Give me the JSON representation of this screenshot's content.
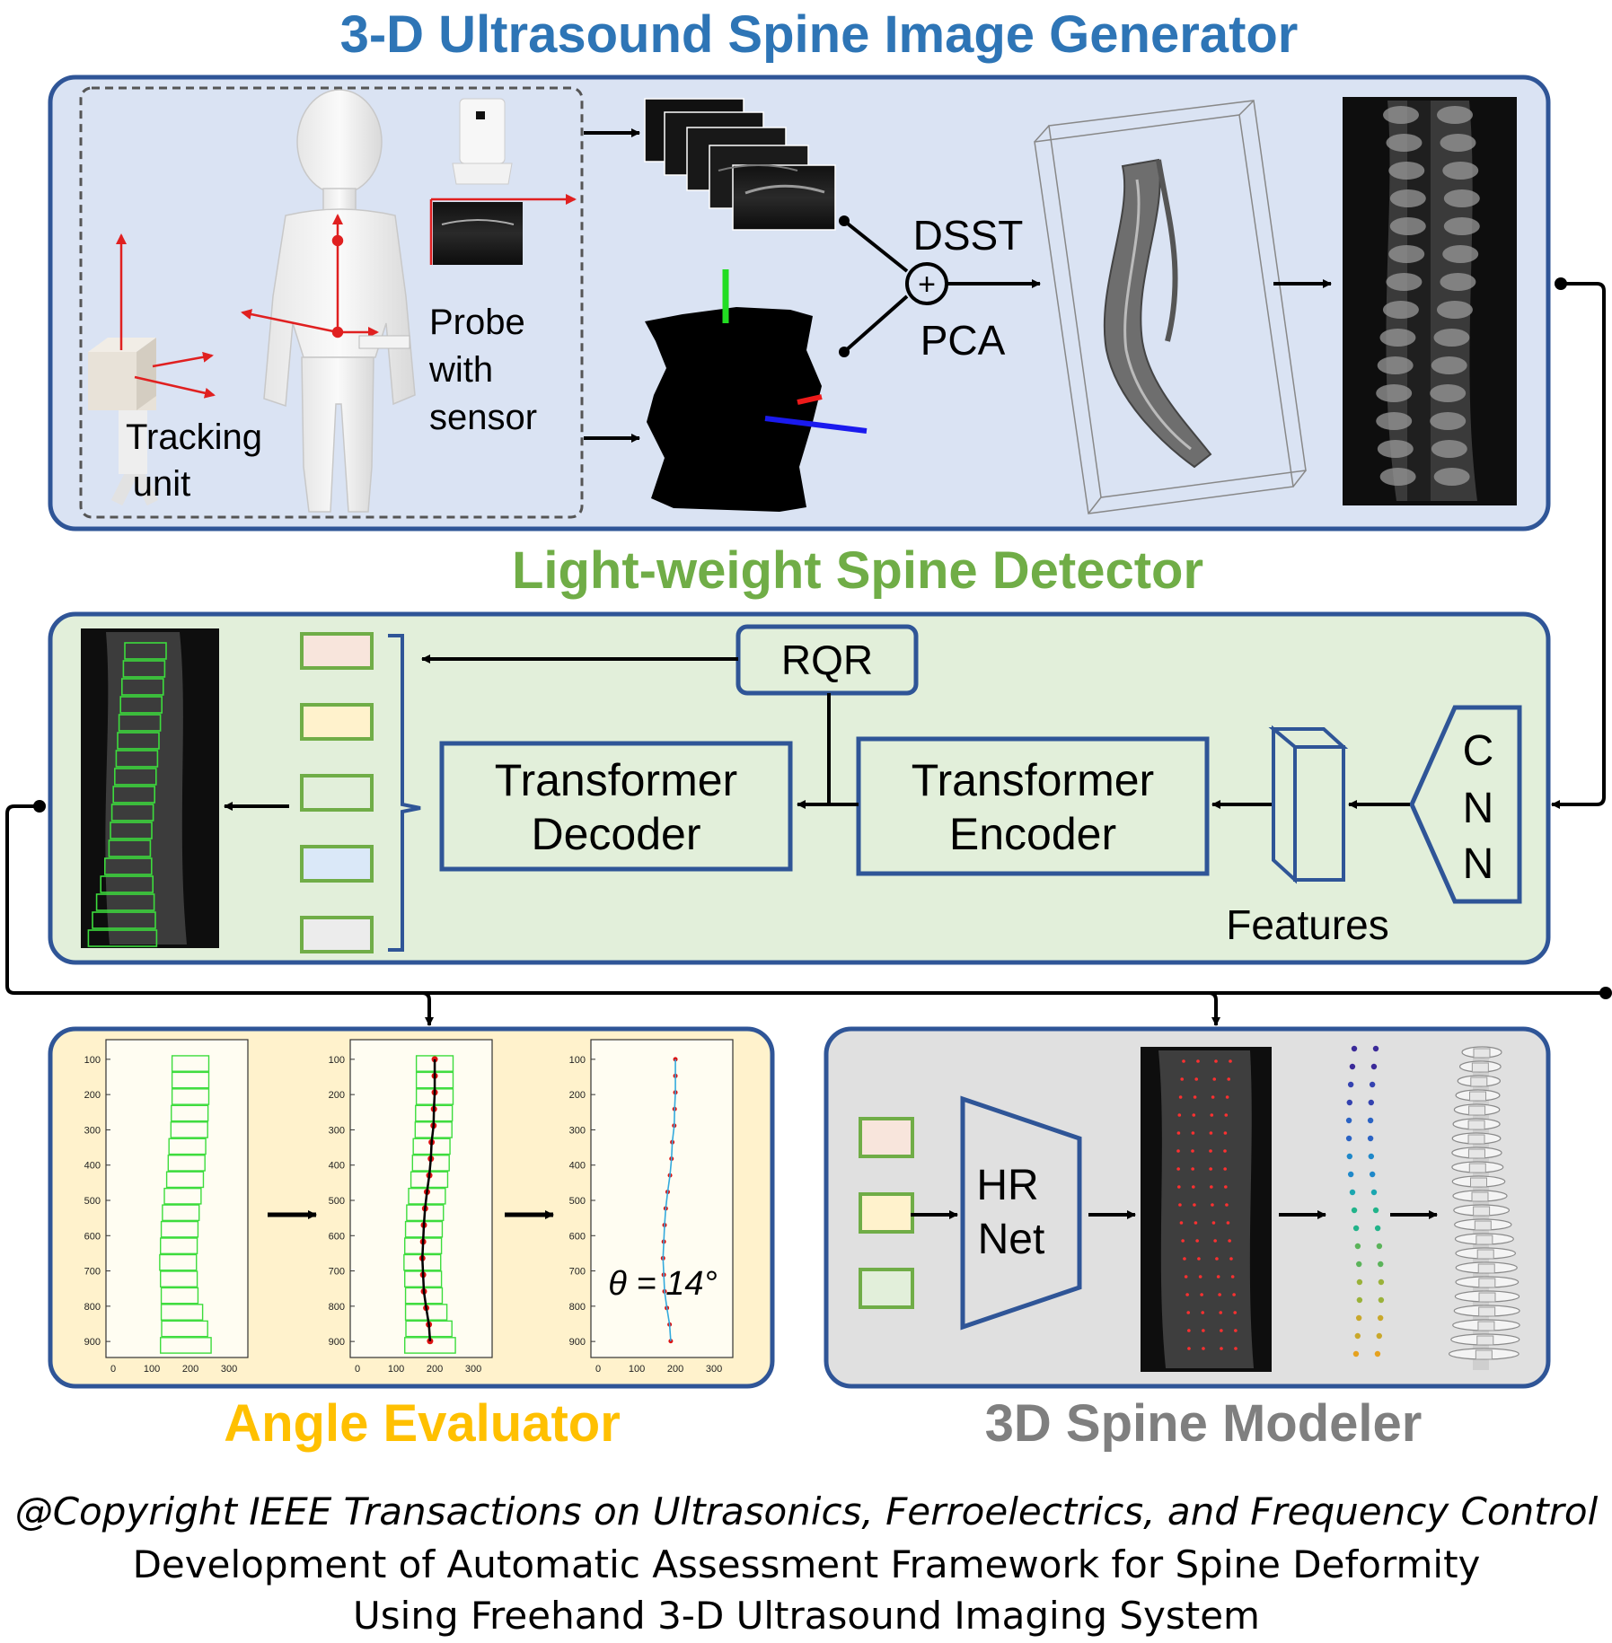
{
  "sections": {
    "generator": {
      "title": "3-D Ultrasound Spine Image Generator",
      "color": "#2e75b6",
      "panel_fill": "#dae3f3"
    },
    "detector": {
      "title": "Light-weight Spine Detector",
      "color": "#70ad47",
      "panel_fill": "#e2efda"
    },
    "evaluator": {
      "title": "Angle Evaluator",
      "color": "#ffc000",
      "panel_fill": "#fff2cc"
    },
    "modeler": {
      "title": "3D Spine Modeler",
      "color": "#7f7f7f",
      "panel_fill": "#e0e0e0"
    }
  },
  "generator": {
    "tracking_label": [
      "Tracking",
      "unit"
    ],
    "probe_label": [
      "Probe",
      "with",
      "sensor"
    ],
    "dsst": "DSST",
    "pca": "PCA",
    "plus": "+"
  },
  "detector": {
    "rqr": "RQR",
    "decoder": [
      "Transformer",
      "Decoder"
    ],
    "encoder": [
      "Transformer",
      "Encoder"
    ],
    "features": "Features",
    "cnn": [
      "C",
      "N",
      "N"
    ],
    "query_colors": [
      "#f8e5dc",
      "#fff2cc",
      "#e2efda",
      "#dae8f8",
      "#ececec"
    ]
  },
  "evaluator": {
    "y_ticks": [
      "100",
      "200",
      "300",
      "400",
      "500",
      "600",
      "700",
      "800",
      "900"
    ],
    "x_ticks": [
      "0",
      "100",
      "200",
      "300"
    ],
    "angle_label": "θ = 14°"
  },
  "modeler": {
    "hrnet": [
      "HR",
      "Net"
    ],
    "box_colors": [
      "#f8e5dc",
      "#fff2cc",
      "#e2efda"
    ]
  },
  "footer": {
    "copyright": "@Copyright IEEE Transactions on Ultrasonics, Ferroelectrics, and Frequency Control",
    "paper_line1": "Development of Automatic Assessment Framework for Spine Deformity",
    "paper_line2": "Using Freehand 3-D Ultrasound Imaging System"
  }
}
